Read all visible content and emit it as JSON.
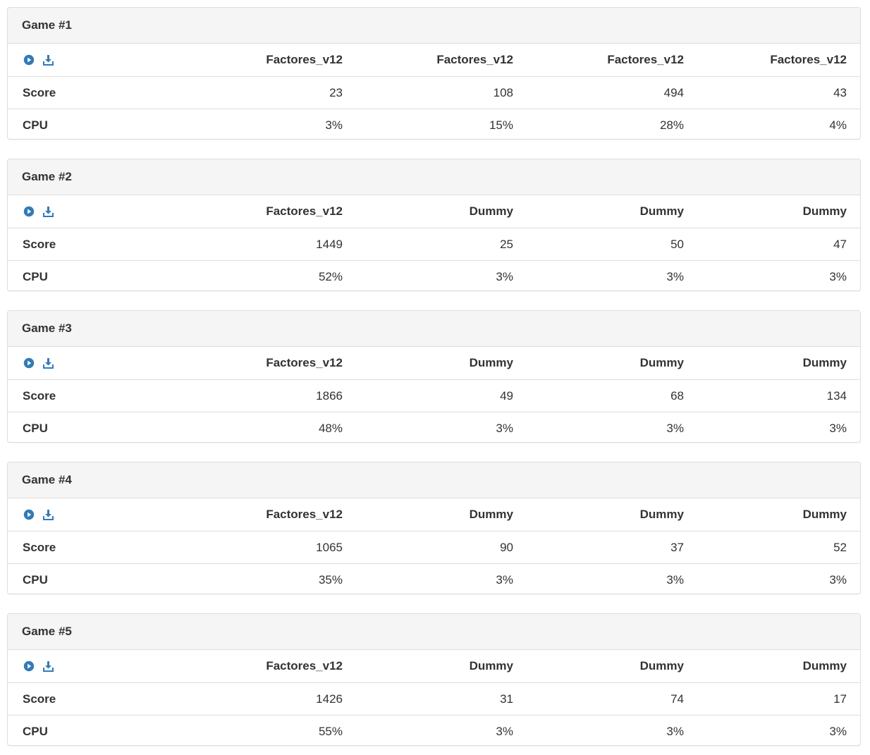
{
  "colors": {
    "icon": "#337ab7",
    "heading_bg": "#f5f5f5",
    "border": "#dddddd",
    "text": "#333333"
  },
  "icons": {
    "play": "play-circle-icon",
    "download": "download-icon"
  },
  "row_labels": {
    "score": "Score",
    "cpu": "CPU"
  },
  "games": [
    {
      "title": "Game #1",
      "players": [
        "Factores_v12",
        "Factores_v12",
        "Factores_v12",
        "Factores_v12"
      ],
      "scores": [
        "23",
        "108",
        "494",
        "43"
      ],
      "cpu": [
        "3%",
        "15%",
        "28%",
        "4%"
      ]
    },
    {
      "title": "Game #2",
      "players": [
        "Factores_v12",
        "Dummy",
        "Dummy",
        "Dummy"
      ],
      "scores": [
        "1449",
        "25",
        "50",
        "47"
      ],
      "cpu": [
        "52%",
        "3%",
        "3%",
        "3%"
      ]
    },
    {
      "title": "Game #3",
      "players": [
        "Factores_v12",
        "Dummy",
        "Dummy",
        "Dummy"
      ],
      "scores": [
        "1866",
        "49",
        "68",
        "134"
      ],
      "cpu": [
        "48%",
        "3%",
        "3%",
        "3%"
      ]
    },
    {
      "title": "Game #4",
      "players": [
        "Factores_v12",
        "Dummy",
        "Dummy",
        "Dummy"
      ],
      "scores": [
        "1065",
        "90",
        "37",
        "52"
      ],
      "cpu": [
        "35%",
        "3%",
        "3%",
        "3%"
      ]
    },
    {
      "title": "Game #5",
      "players": [
        "Factores_v12",
        "Dummy",
        "Dummy",
        "Dummy"
      ],
      "scores": [
        "1426",
        "31",
        "74",
        "17"
      ],
      "cpu": [
        "55%",
        "3%",
        "3%",
        "3%"
      ]
    }
  ]
}
